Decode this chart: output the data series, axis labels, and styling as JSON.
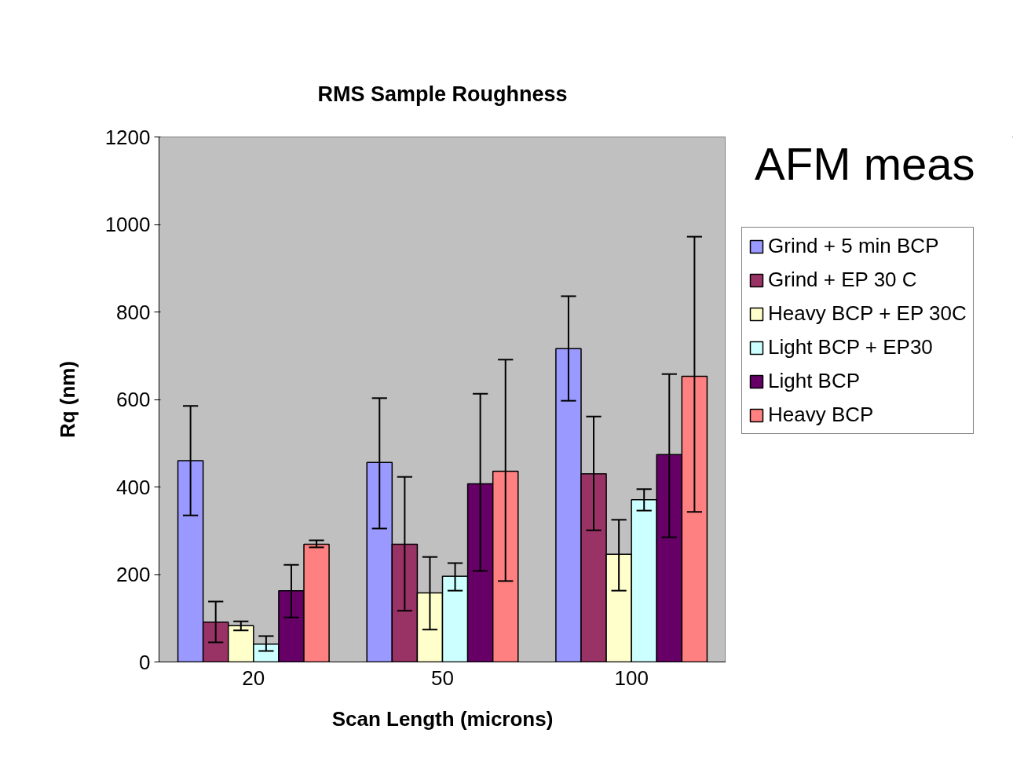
{
  "chart_data": {
    "type": "bar",
    "title": "RMS Sample Roughness",
    "xlabel": "Scan Length (microns)",
    "ylabel": "Rq (nm)",
    "annotations": [
      "AFM meas"
    ],
    "categories": [
      "20",
      "50",
      "100"
    ],
    "series": [
      {
        "name": "Grind + 5 min BCP",
        "color": "#9999ff",
        "values": [
          460,
          456,
          716
        ],
        "errors": [
          [
            335,
            585
          ],
          [
            305,
            603
          ],
          [
            597,
            836
          ]
        ]
      },
      {
        "name": "Grind + EP 30 C",
        "color": "#993366",
        "values": [
          91,
          269,
          430
        ],
        "errors": [
          [
            45,
            138
          ],
          [
            117,
            423
          ],
          [
            301,
            561
          ]
        ]
      },
      {
        "name": "Heavy BCP + EP 30C",
        "color": "#ffffcc",
        "values": [
          83,
          158,
          246
        ],
        "errors": [
          [
            72,
            93
          ],
          [
            74,
            240
          ],
          [
            163,
            325
          ]
        ]
      },
      {
        "name": "Light BCP + EP30",
        "color": "#ccffff",
        "values": [
          41,
          196,
          371
        ],
        "errors": [
          [
            25,
            59
          ],
          [
            163,
            226
          ],
          [
            346,
            395
          ]
        ]
      },
      {
        "name": "Light BCP",
        "color": "#660066",
        "values": [
          163,
          407,
          474
        ],
        "errors": [
          [
            102,
            222
          ],
          [
            208,
            613
          ],
          [
            285,
            658
          ]
        ]
      },
      {
        "name": "Heavy BCP",
        "color": "#ff8080",
        "values": [
          269,
          436,
          653
        ],
        "errors": [
          [
            262,
            278
          ],
          [
            185,
            691
          ],
          [
            343,
            972
          ]
        ]
      }
    ],
    "ylim": [
      0,
      1200
    ],
    "yticks": [
      0,
      200,
      400,
      600,
      800,
      1000,
      1200
    ],
    "grid": false,
    "legend": "right"
  }
}
